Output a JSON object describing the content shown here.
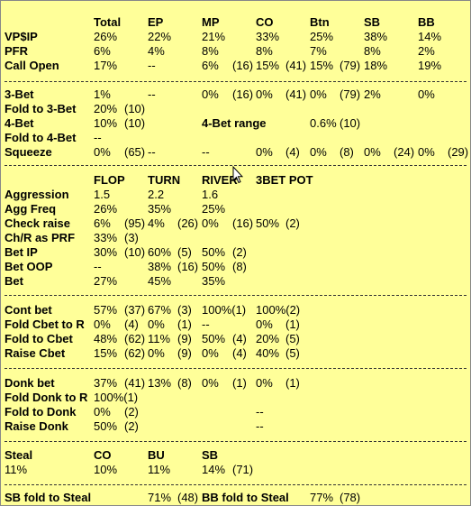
{
  "sec1": {
    "headers": [
      "Total",
      "EP",
      "MP",
      "CO",
      "Btn",
      "SB",
      "BB"
    ],
    "rows": [
      {
        "label": "VP$IP",
        "values": [
          "26%",
          "22%",
          "21%",
          "33%",
          "25%",
          "38%",
          "14%"
        ]
      },
      {
        "label": "PFR",
        "values": [
          "6%",
          "4%",
          "8%",
          "8%",
          "7%",
          "8%",
          "2%"
        ]
      },
      {
        "label": "Call Open",
        "values": [
          "17%",
          "--",
          "6%",
          "(16)",
          "15%",
          "(41)",
          "15%",
          "(79)",
          "18%",
          "19%"
        ]
      }
    ]
  },
  "sec2": {
    "threebet": [
      "3-Bet",
      "1%",
      "--",
      "0%",
      "(16)",
      "0%",
      "(41)",
      "0%",
      "(79)",
      "2%",
      "0%"
    ],
    "fold3bet": [
      "Fold to 3-Bet",
      "20%",
      "(10)"
    ],
    "fourbet": [
      "4-Bet",
      "10%",
      "(10)",
      "4-Bet range",
      "0.6%",
      "(10)"
    ],
    "fold4bet": [
      "Fold to 4-Bet",
      "--"
    ],
    "squeeze": [
      "Squeeze",
      "0%",
      "(65)",
      "--",
      "--",
      "0%",
      "(4)",
      "0%",
      "(8)",
      "0%",
      "(24)",
      "0%",
      "(29)"
    ]
  },
  "sec3": {
    "headers": [
      "FLOP",
      "TURN",
      "RIVER",
      "3BET POT"
    ],
    "aggression": [
      "Aggression",
      "1.5",
      "2.2",
      "1.6"
    ],
    "aggfreq": [
      "Agg Freq",
      "26%",
      "35%",
      "25%"
    ],
    "checkraise": [
      "Check raise",
      "6%",
      "(95)",
      "4%",
      "(26)",
      "0%",
      "(16)",
      "50%",
      "(2)"
    ],
    "chr_prf": [
      "Ch/R as PRF",
      "33%",
      "(3)"
    ],
    "betip": [
      "Bet IP",
      "30%",
      "(10)",
      "60%",
      "(5)",
      "50%",
      "(2)"
    ],
    "betoop": [
      "Bet OOP",
      "--",
      "38%",
      "(16)",
      "50%",
      "(8)"
    ],
    "bet": [
      "Bet",
      "27%",
      "45%",
      "35%"
    ]
  },
  "sec4": {
    "contbet": [
      "Cont bet",
      "57%",
      "(37)",
      "67%",
      "(3)",
      "100%(1)",
      "100%(2)"
    ],
    "foldcbr": [
      "Fold Cbet to R",
      "0%",
      "(4)",
      "0%",
      "(1)",
      "--",
      "0%",
      "(1)"
    ],
    "foldcb": [
      "Fold to Cbet",
      "48%",
      "(62)",
      "11%",
      "(9)",
      "50%",
      "(4)",
      "20%",
      "(5)"
    ],
    "raisecb": [
      "Raise Cbet",
      "15%",
      "(62)",
      "0%",
      "(9)",
      "0%",
      "(4)",
      "40%",
      "(5)"
    ]
  },
  "sec5": {
    "donk": [
      "Donk bet",
      "37%",
      "(41)",
      "13%",
      "(8)",
      "0%",
      "(1)",
      "0%",
      "(1)"
    ],
    "folddonkr": [
      "Fold Donk to R",
      "100%(1)"
    ],
    "folddonk": [
      "Fold to Donk",
      "0%",
      "(2)",
      "--"
    ],
    "raisedonk": [
      "Raise Donk",
      "50%",
      "(2)",
      "--"
    ]
  },
  "sec6": {
    "headers": [
      "Steal",
      "CO",
      "BU",
      "SB"
    ],
    "values": [
      "11%",
      "10%",
      "11%",
      "14%",
      "(71)"
    ]
  },
  "sec7": {
    "items": [
      "SB fold to Steal",
      "71%",
      "(48)",
      "BB fold to Steal",
      "77%",
      "(78)"
    ]
  },
  "colors": {
    "background": "#ffff99",
    "text": "#000000",
    "divider": "#333333"
  },
  "icons": {
    "cursor": "mouse-pointer-icon"
  }
}
